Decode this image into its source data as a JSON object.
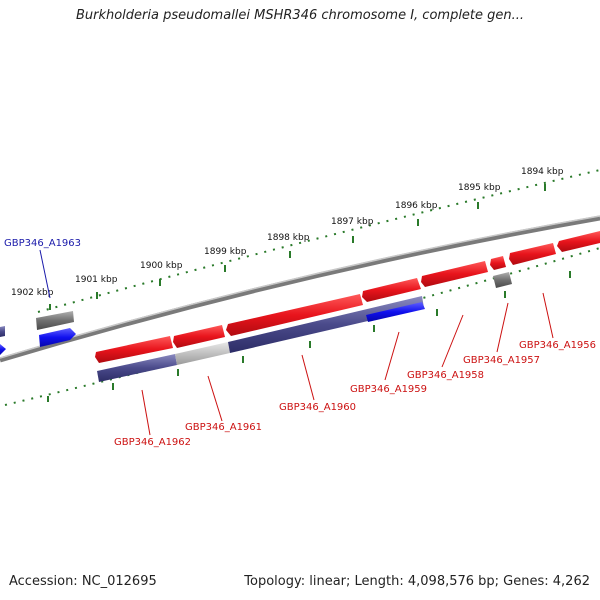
{
  "title": "Burkholderia pseudomallei MSHR346 chromosome I, complete gen...",
  "footer": {
    "accession": "Accession: NC_012695",
    "summary": "Topology: linear; Length: 4,098,576 bp; Genes: 4,262"
  },
  "colors": {
    "backbone": "#808080",
    "forward_gene": "#e8141c",
    "reverse_gene": "#4a4a8a",
    "highlight_gene": "#1010ee",
    "pseudo_gene": "#707070",
    "light_gene": "#c0c0c0",
    "tick": "#2a7a2a",
    "gene_label": "#cc1111",
    "selected_label": "#1a1aaa"
  },
  "ruler": {
    "ticks": [
      "1902 kbp",
      "1901 kbp",
      "1900 kbp",
      "1899 kbp",
      "1898 kbp",
      "1897 kbp",
      "1896 kbp",
      "1895 kbp",
      "1894 kbp"
    ]
  },
  "genes": {
    "labels": [
      "GBP346_A1963",
      "GBP346_A1962",
      "GBP346_A1961",
      "GBP346_A1960",
      "GBP346_A1959",
      "GBP346_A1958",
      "GBP346_A1957",
      "GBP346_A1956"
    ]
  }
}
